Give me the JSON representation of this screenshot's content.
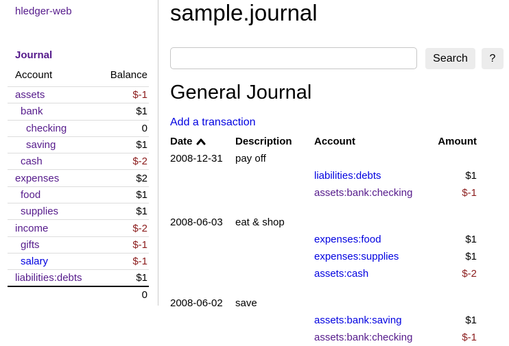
{
  "colors": {
    "link_blue": "#0000e0",
    "link_visited": "#551a8b",
    "negative_red": "#8b1c1c"
  },
  "sidebar": {
    "app_title": "hledger-web",
    "nav_journal": "Journal",
    "accounts_table": {
      "headers": [
        "Account",
        "Balance"
      ],
      "rows": [
        {
          "account": "assets",
          "indent": 0,
          "balance": "$-1",
          "negative": true,
          "visited": true
        },
        {
          "account": "bank",
          "indent": 1,
          "balance": "$1",
          "negative": false,
          "visited": true
        },
        {
          "account": "checking",
          "indent": 2,
          "balance": "0",
          "negative": false,
          "visited": true
        },
        {
          "account": "saving",
          "indent": 2,
          "balance": "$1",
          "negative": false,
          "visited": true
        },
        {
          "account": "cash",
          "indent": 1,
          "balance": "$-2",
          "negative": true,
          "visited": true
        },
        {
          "account": "expenses",
          "indent": 0,
          "balance": "$2",
          "negative": false,
          "visited": true
        },
        {
          "account": "food",
          "indent": 1,
          "balance": "$1",
          "negative": false,
          "visited": true
        },
        {
          "account": "supplies",
          "indent": 1,
          "balance": "$1",
          "negative": false,
          "visited": true
        },
        {
          "account": "income",
          "indent": 0,
          "balance": "$-2",
          "negative": true,
          "visited": true
        },
        {
          "account": "gifts",
          "indent": 1,
          "balance": "$-1",
          "negative": true,
          "visited": true
        },
        {
          "account": "salary",
          "indent": 1,
          "balance": "$-1",
          "negative": true,
          "visited": false
        },
        {
          "account": "liabilities:debts",
          "indent": 0,
          "balance": "$1",
          "negative": false,
          "visited": true
        }
      ],
      "total": "0"
    }
  },
  "main": {
    "title": "sample.journal",
    "search": {
      "value": "",
      "placeholder": "",
      "button_label": "Search",
      "help_label": "?"
    },
    "section_title": "General Journal",
    "add_transaction_label": "Add a transaction",
    "journal_table": {
      "headers": {
        "date": "Date",
        "description": "Description",
        "account": "Account",
        "amount": "Amount"
      },
      "sort_column": "Date",
      "sort_direction": "ascending",
      "transactions": [
        {
          "date": "2008-12-31",
          "description": "pay off",
          "postings": [
            {
              "account": "liabilities:debts",
              "amount": "$1",
              "negative": false,
              "visited": false
            },
            {
              "account": "assets:bank:checking",
              "amount": "$-1",
              "negative": true,
              "visited": true
            }
          ]
        },
        {
          "date": "2008-06-03",
          "description": "eat & shop",
          "postings": [
            {
              "account": "expenses:food",
              "amount": "$1",
              "negative": false,
              "visited": false
            },
            {
              "account": "expenses:supplies",
              "amount": "$1",
              "negative": false,
              "visited": false
            },
            {
              "account": "assets:cash",
              "amount": "$-2",
              "negative": true,
              "visited": false
            }
          ]
        },
        {
          "date": "2008-06-02",
          "description": "save",
          "postings": [
            {
              "account": "assets:bank:saving",
              "amount": "$1",
              "negative": false,
              "visited": false
            },
            {
              "account": "assets:bank:checking",
              "amount": "$-1",
              "negative": true,
              "visited": true
            }
          ]
        }
      ]
    }
  }
}
